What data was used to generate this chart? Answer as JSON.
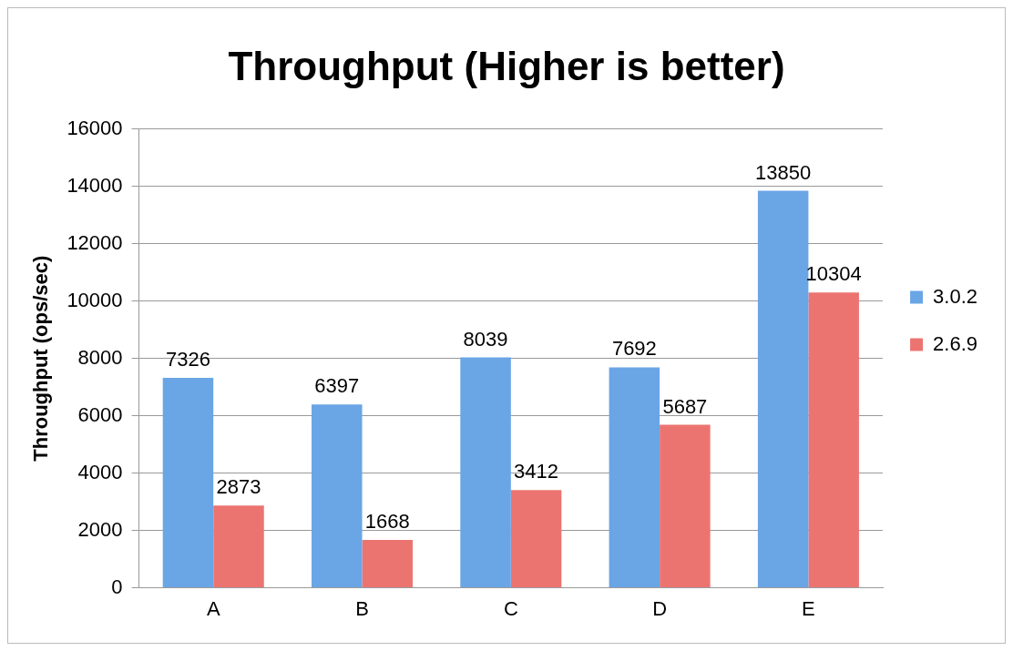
{
  "chart_data": {
    "type": "bar",
    "title": "Throughput (Higher is better)",
    "ylabel": "Throughput (ops/sec)",
    "categories": [
      "A",
      "B",
      "C",
      "D",
      "E"
    ],
    "series": [
      {
        "name": "3.0.2",
        "color": "#6aa5e6",
        "values": [
          7326,
          6397,
          8039,
          7692,
          13850
        ]
      },
      {
        "name": "2.6.9",
        "color": "#ec7470",
        "values": [
          2873,
          1668,
          3412,
          5687,
          10304
        ]
      }
    ],
    "ylim": [
      0,
      16000
    ],
    "yticks": [
      0,
      2000,
      4000,
      6000,
      8000,
      10000,
      12000,
      14000,
      16000
    ],
    "grid": "y",
    "legend": "right",
    "data_labels": true
  }
}
